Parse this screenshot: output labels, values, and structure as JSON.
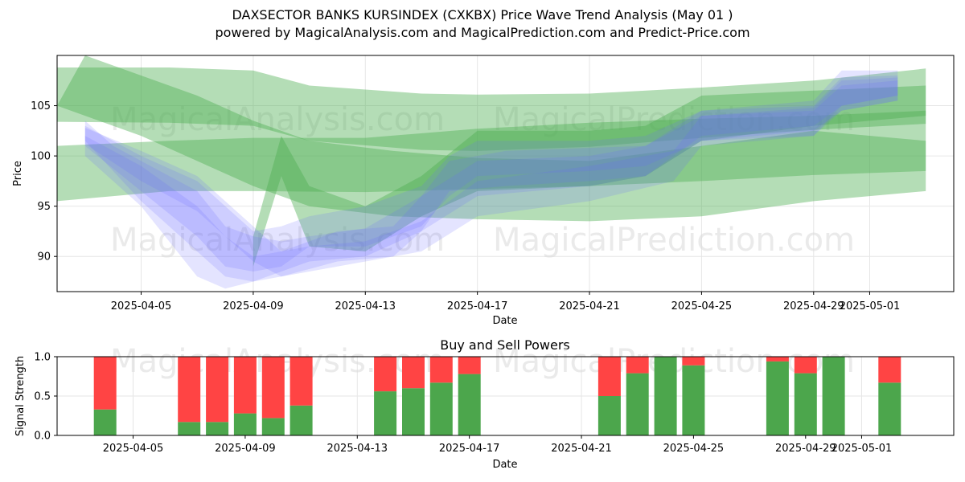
{
  "title": {
    "line1": "DAXSECTOR BANKS KURSINDEX (CXKBX) Price Wave Trend Analysis (May 01 )",
    "line2": "powered by MagicalAnalysis.com and MagicalPrediction.com and Predict-Price.com"
  },
  "watermarks": [
    "MagicalAnalysis.com",
    "MagicalPrediction.com"
  ],
  "colors": {
    "green_band": "#4caf50",
    "blue_band": "#6b6bff",
    "buy": "#4ca64c",
    "sell": "#ff4444",
    "grid": "#e6e6e6"
  },
  "chart_data": [
    {
      "type": "area",
      "name": "price-wave-chart",
      "title": "",
      "xlabel": "Date",
      "ylabel": "Price",
      "xlim": [
        "2025-04-02",
        "2025-05-04"
      ],
      "ylim": [
        86.5,
        110.0
      ],
      "x_ticks": [
        "2025-04-05",
        "2025-04-09",
        "2025-04-13",
        "2025-04-17",
        "2025-04-21",
        "2025-04-25",
        "2025-04-29",
        "2025-05-01"
      ],
      "y_ticks": [
        90,
        95,
        100,
        105
      ],
      "grid": true,
      "green_bands": [
        {
          "x": [
            "2025-04-02",
            "2025-04-03",
            "2025-04-05",
            "2025-04-07",
            "2025-04-09",
            "2025-04-11",
            "2025-04-14",
            "2025-04-17",
            "2025-04-21",
            "2025-04-25",
            "2025-04-29",
            "2025-05-03"
          ],
          "upper": [
            105.0,
            110.0,
            108.0,
            106.0,
            103.5,
            101.5,
            100.5,
            99.8,
            99.5,
            101.0,
            102.5,
            101.5
          ],
          "lower": [
            105.0,
            104.0,
            102.0,
            99.5,
            97.0,
            95.0,
            94.0,
            93.7,
            93.5,
            94.0,
            95.5,
            96.5
          ]
        },
        {
          "x": [
            "2025-04-02",
            "2025-04-06",
            "2025-04-09",
            "2025-04-11",
            "2025-04-15",
            "2025-04-17",
            "2025-04-21",
            "2025-04-25",
            "2025-04-29",
            "2025-05-03"
          ],
          "upper": [
            108.8,
            108.8,
            108.5,
            107.0,
            106.2,
            106.1,
            106.2,
            106.8,
            107.5,
            108.7
          ],
          "lower": [
            103.4,
            103.3,
            103.0,
            101.5,
            100.6,
            100.5,
            100.9,
            101.8,
            102.6,
            103.2
          ]
        },
        {
          "x": [
            "2025-04-02",
            "2025-04-06",
            "2025-04-09",
            "2025-04-13",
            "2025-04-17",
            "2025-04-21",
            "2025-04-25",
            "2025-04-29",
            "2025-05-03"
          ],
          "upper": [
            101.0,
            101.5,
            101.8,
            101.8,
            102.7,
            103.3,
            103.7,
            104.0,
            104.5
          ],
          "lower": [
            95.5,
            96.5,
            96.5,
            96.4,
            96.7,
            97.0,
            97.5,
            98.1,
            98.5
          ]
        },
        {
          "x": [
            "2025-04-09",
            "2025-04-10",
            "2025-04-11",
            "2025-04-13",
            "2025-04-15",
            "2025-04-17",
            "2025-04-21",
            "2025-04-23",
            "2025-04-25",
            "2025-04-29",
            "2025-05-03"
          ],
          "upper": [
            92.0,
            102.0,
            97.0,
            95.0,
            98.0,
            102.5,
            102.5,
            103.0,
            106.0,
            106.5,
            107.0
          ],
          "lower": [
            89.0,
            98.0,
            91.0,
            90.5,
            94.0,
            96.5,
            97.0,
            98.0,
            101.5,
            103.0,
            104.0
          ]
        }
      ],
      "blue_bands": [
        {
          "x": [
            "2025-04-03",
            "2025-04-04",
            "2025-04-05",
            "2025-04-07",
            "2025-04-08",
            "2025-04-09",
            "2025-04-10",
            "2025-04-11",
            "2025-04-13",
            "2025-04-15",
            "2025-04-17",
            "2025-04-21",
            "2025-04-23",
            "2025-04-25",
            "2025-04-29",
            "2025-04-30",
            "2025-05-02"
          ],
          "upper": [
            103.5,
            101.0,
            99.5,
            96.5,
            93.0,
            92.0,
            91.5,
            92.0,
            92.8,
            96.0,
            99.5,
            100.0,
            101.0,
            104.5,
            105.0,
            107.8,
            108.0
          ],
          "lower": [
            101.5,
            98.5,
            95.5,
            90.5,
            88.0,
            87.5,
            88.5,
            89.5,
            90.0,
            92.5,
            96.0,
            97.0,
            98.0,
            102.0,
            103.0,
            105.0,
            106.0
          ]
        },
        {
          "x": [
            "2025-04-03",
            "2025-04-05",
            "2025-04-07",
            "2025-04-08",
            "2025-04-09",
            "2025-04-10",
            "2025-04-11",
            "2025-04-13",
            "2025-04-15",
            "2025-04-16",
            "2025-04-17",
            "2025-04-21",
            "2025-04-23",
            "2025-04-25",
            "2025-04-29",
            "2025-04-30",
            "2025-05-02"
          ],
          "upper": [
            103.0,
            100.0,
            97.5,
            95.0,
            92.5,
            93.0,
            94.0,
            95.0,
            97.0,
            100.0,
            101.5,
            101.5,
            102.0,
            104.5,
            105.5,
            108.5,
            108.5
          ],
          "lower": [
            101.0,
            96.5,
            92.0,
            89.0,
            88.5,
            89.0,
            91.0,
            91.0,
            93.0,
            96.0,
            98.0,
            98.5,
            99.0,
            101.5,
            102.5,
            104.5,
            105.5
          ]
        },
        {
          "x": [
            "2025-04-03",
            "2025-04-05",
            "2025-04-07",
            "2025-04-08",
            "2025-04-09",
            "2025-04-11",
            "2025-04-13",
            "2025-04-15",
            "2025-04-17",
            "2025-04-21",
            "2025-04-24",
            "2025-04-25",
            "2025-04-29",
            "2025-04-30",
            "2025-05-02"
          ],
          "upper": [
            102.0,
            99.0,
            95.0,
            92.0,
            90.0,
            91.0,
            91.5,
            93.5,
            97.5,
            99.0,
            100.5,
            104.0,
            104.5,
            107.0,
            107.5
          ],
          "lower": [
            100.0,
            95.0,
            88.0,
            86.8,
            87.5,
            88.5,
            89.5,
            90.5,
            94.0,
            95.5,
            97.5,
            101.0,
            102.0,
            104.5,
            105.5
          ]
        },
        {
          "x": [
            "2025-04-03",
            "2025-04-05",
            "2025-04-07",
            "2025-04-09",
            "2025-04-10",
            "2025-04-12",
            "2025-04-14",
            "2025-04-15",
            "2025-04-16",
            "2025-04-18",
            "2025-04-21",
            "2025-04-23",
            "2025-04-25",
            "2025-04-29",
            "2025-04-30",
            "2025-05-02"
          ],
          "upper": [
            102.8,
            100.5,
            98.0,
            93.0,
            90.5,
            92.5,
            93.0,
            96.0,
            99.5,
            100.5,
            100.8,
            101.0,
            104.0,
            104.8,
            107.5,
            107.8
          ],
          "lower": [
            101.2,
            97.5,
            94.5,
            89.5,
            88.0,
            89.5,
            90.0,
            92.5,
            96.5,
            97.0,
            97.5,
            98.0,
            101.5,
            102.0,
            105.0,
            106.0
          ]
        }
      ]
    },
    {
      "type": "bar",
      "name": "buy-sell-powers",
      "title": "Buy and Sell Powers",
      "xlabel": "Date",
      "ylabel": "Signal Strength",
      "ylim": [
        0,
        1
      ],
      "y_ticks": [
        0.0,
        0.5,
        1.0
      ],
      "x_ticks": [
        "2025-04-05",
        "2025-04-09",
        "2025-04-13",
        "2025-04-17",
        "2025-04-21",
        "2025-04-25",
        "2025-04-29",
        "2025-05-01"
      ],
      "grid": true,
      "categories": [
        "2025-04-04",
        "2025-04-07",
        "2025-04-08",
        "2025-04-09",
        "2025-04-10",
        "2025-04-11",
        "2025-04-14",
        "2025-04-15",
        "2025-04-16",
        "2025-04-17",
        "2025-04-22",
        "2025-04-23",
        "2025-04-24",
        "2025-04-25",
        "2025-04-28",
        "2025-04-29",
        "2025-04-30",
        "2025-05-02"
      ],
      "series": [
        {
          "name": "Buy",
          "values": [
            0.33,
            0.17,
            0.17,
            0.28,
            0.22,
            0.38,
            0.56,
            0.6,
            0.67,
            0.78,
            0.5,
            0.79,
            1.0,
            0.89,
            0.94,
            0.79,
            1.0,
            0.67
          ]
        },
        {
          "name": "Sell",
          "values": [
            0.67,
            0.83,
            0.83,
            0.72,
            0.78,
            0.62,
            0.44,
            0.4,
            0.33,
            0.22,
            0.5,
            0.21,
            0.0,
            0.11,
            0.06,
            0.21,
            0.0,
            0.33
          ]
        }
      ]
    }
  ]
}
